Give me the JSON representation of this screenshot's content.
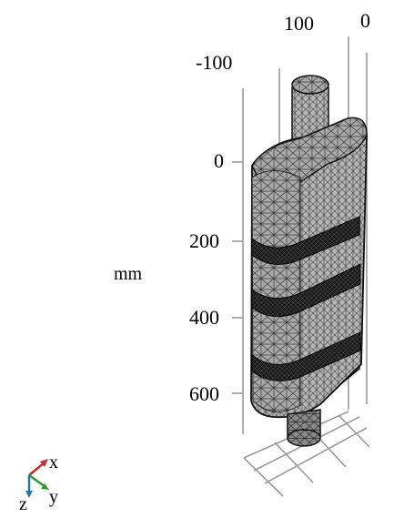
{
  "axes": {
    "top_ticks": [
      "100",
      "0",
      "-100"
    ],
    "vertical_ticks": [
      "0",
      "200",
      "400",
      "600"
    ],
    "unit_label": "mm",
    "show_grid": true
  },
  "model": {
    "description_free": true,
    "mesh_color": "#6e6e6e",
    "face_color": "#9a9a9a",
    "dark_band_color": "#111111"
  },
  "triad": {
    "x": "x",
    "y": "y",
    "z": "z",
    "x_color": "#d62728",
    "y_color": "#2ca02c",
    "z_color": "#1f77b4"
  }
}
